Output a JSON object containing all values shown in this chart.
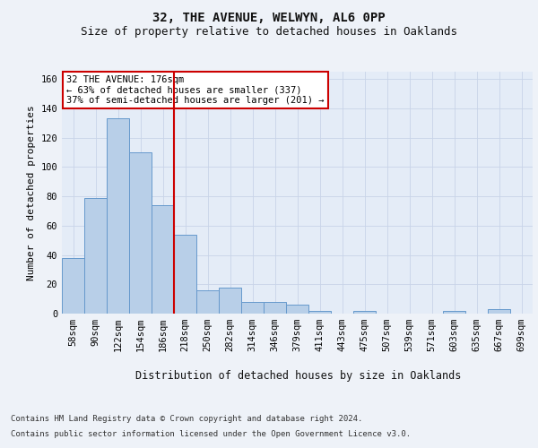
{
  "title1": "32, THE AVENUE, WELWYN, AL6 0PP",
  "title2": "Size of property relative to detached houses in Oaklands",
  "xlabel": "Distribution of detached houses by size in Oaklands",
  "ylabel": "Number of detached properties",
  "bin_labels": [
    "58sqm",
    "90sqm",
    "122sqm",
    "154sqm",
    "186sqm",
    "218sqm",
    "250sqm",
    "282sqm",
    "314sqm",
    "346sqm",
    "379sqm",
    "411sqm",
    "443sqm",
    "475sqm",
    "507sqm",
    "539sqm",
    "571sqm",
    "603sqm",
    "635sqm",
    "667sqm",
    "699sqm"
  ],
  "bar_values": [
    38,
    79,
    133,
    110,
    74,
    54,
    16,
    18,
    8,
    8,
    6,
    2,
    0,
    2,
    0,
    0,
    0,
    2,
    0,
    3,
    0
  ],
  "bar_color": "#b8cfe8",
  "bar_edge_color": "#6699cc",
  "ylim": [
    0,
    165
  ],
  "yticks": [
    0,
    20,
    40,
    60,
    80,
    100,
    120,
    140,
    160
  ],
  "grid_color": "#c8d4e8",
  "vline_x": 4.5,
  "vline_color": "#cc0000",
  "annotation_text": "32 THE AVENUE: 176sqm\n← 63% of detached houses are smaller (337)\n37% of semi-detached houses are larger (201) →",
  "annotation_box_color": "#ffffff",
  "annotation_box_edge": "#cc0000",
  "footer1": "Contains HM Land Registry data © Crown copyright and database right 2024.",
  "footer2": "Contains public sector information licensed under the Open Government Licence v3.0.",
  "bg_color": "#eef2f8",
  "plot_bg_color": "#e4ecf7",
  "title1_fontsize": 10,
  "title2_fontsize": 9,
  "ylabel_fontsize": 8,
  "xlabel_fontsize": 8.5,
  "tick_fontsize": 7.5,
  "footer_fontsize": 6.5
}
